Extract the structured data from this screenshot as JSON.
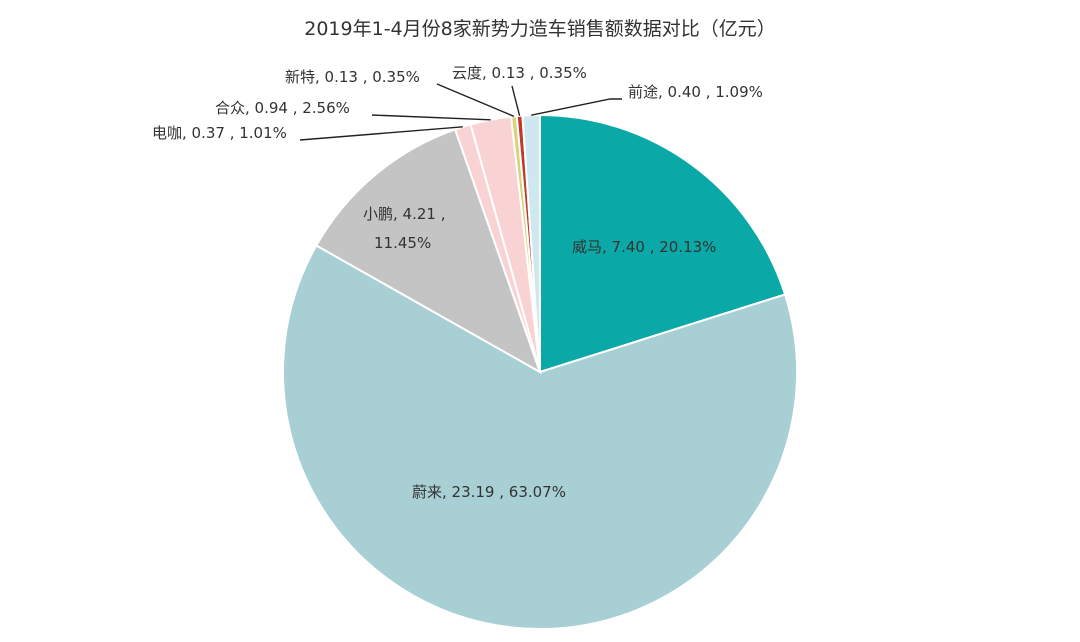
{
  "chart_data": {
    "type": "pie",
    "title": "2019年1-4月份8家新势力造车销售额数据对比（亿元）",
    "slices": [
      {
        "name": "威马",
        "value": 7.4,
        "percent": "20.13%",
        "label": "威马, 7.40 , 20.13%",
        "color": "#0aa8a6"
      },
      {
        "name": "蔚来",
        "value": 23.19,
        "percent": "63.07%",
        "label": "蔚来, 23.19 , 63.07%",
        "color": "#a7cfd4"
      },
      {
        "name": "小鹏",
        "value": 4.21,
        "percent": "11.45%",
        "label_line1": "小鹏, 4.21 ,",
        "label_line2": "11.45%",
        "color": "#c4c4c4"
      },
      {
        "name": "电咖",
        "value": 0.37,
        "percent": "1.01%",
        "label": "电咖, 0.37 , 1.01%",
        "color": "#f9d3d3"
      },
      {
        "name": "合众",
        "value": 0.94,
        "percent": "2.56%",
        "label": "合众, 0.94 , 2.56%",
        "color": "#f9d3d3"
      },
      {
        "name": "新特",
        "value": 0.13,
        "percent": "0.35%",
        "label": "新特, 0.13 , 0.35%",
        "color": "#d8d27a"
      },
      {
        "name": "云度",
        "value": 0.13,
        "percent": "0.35%",
        "label": "云度, 0.13 , 0.35%",
        "color": "#c0392b"
      },
      {
        "name": "前途",
        "value": 0.4,
        "percent": "1.09%",
        "label": "前途, 0.40 , 1.09%",
        "color": "#cfe8ef"
      }
    ]
  }
}
